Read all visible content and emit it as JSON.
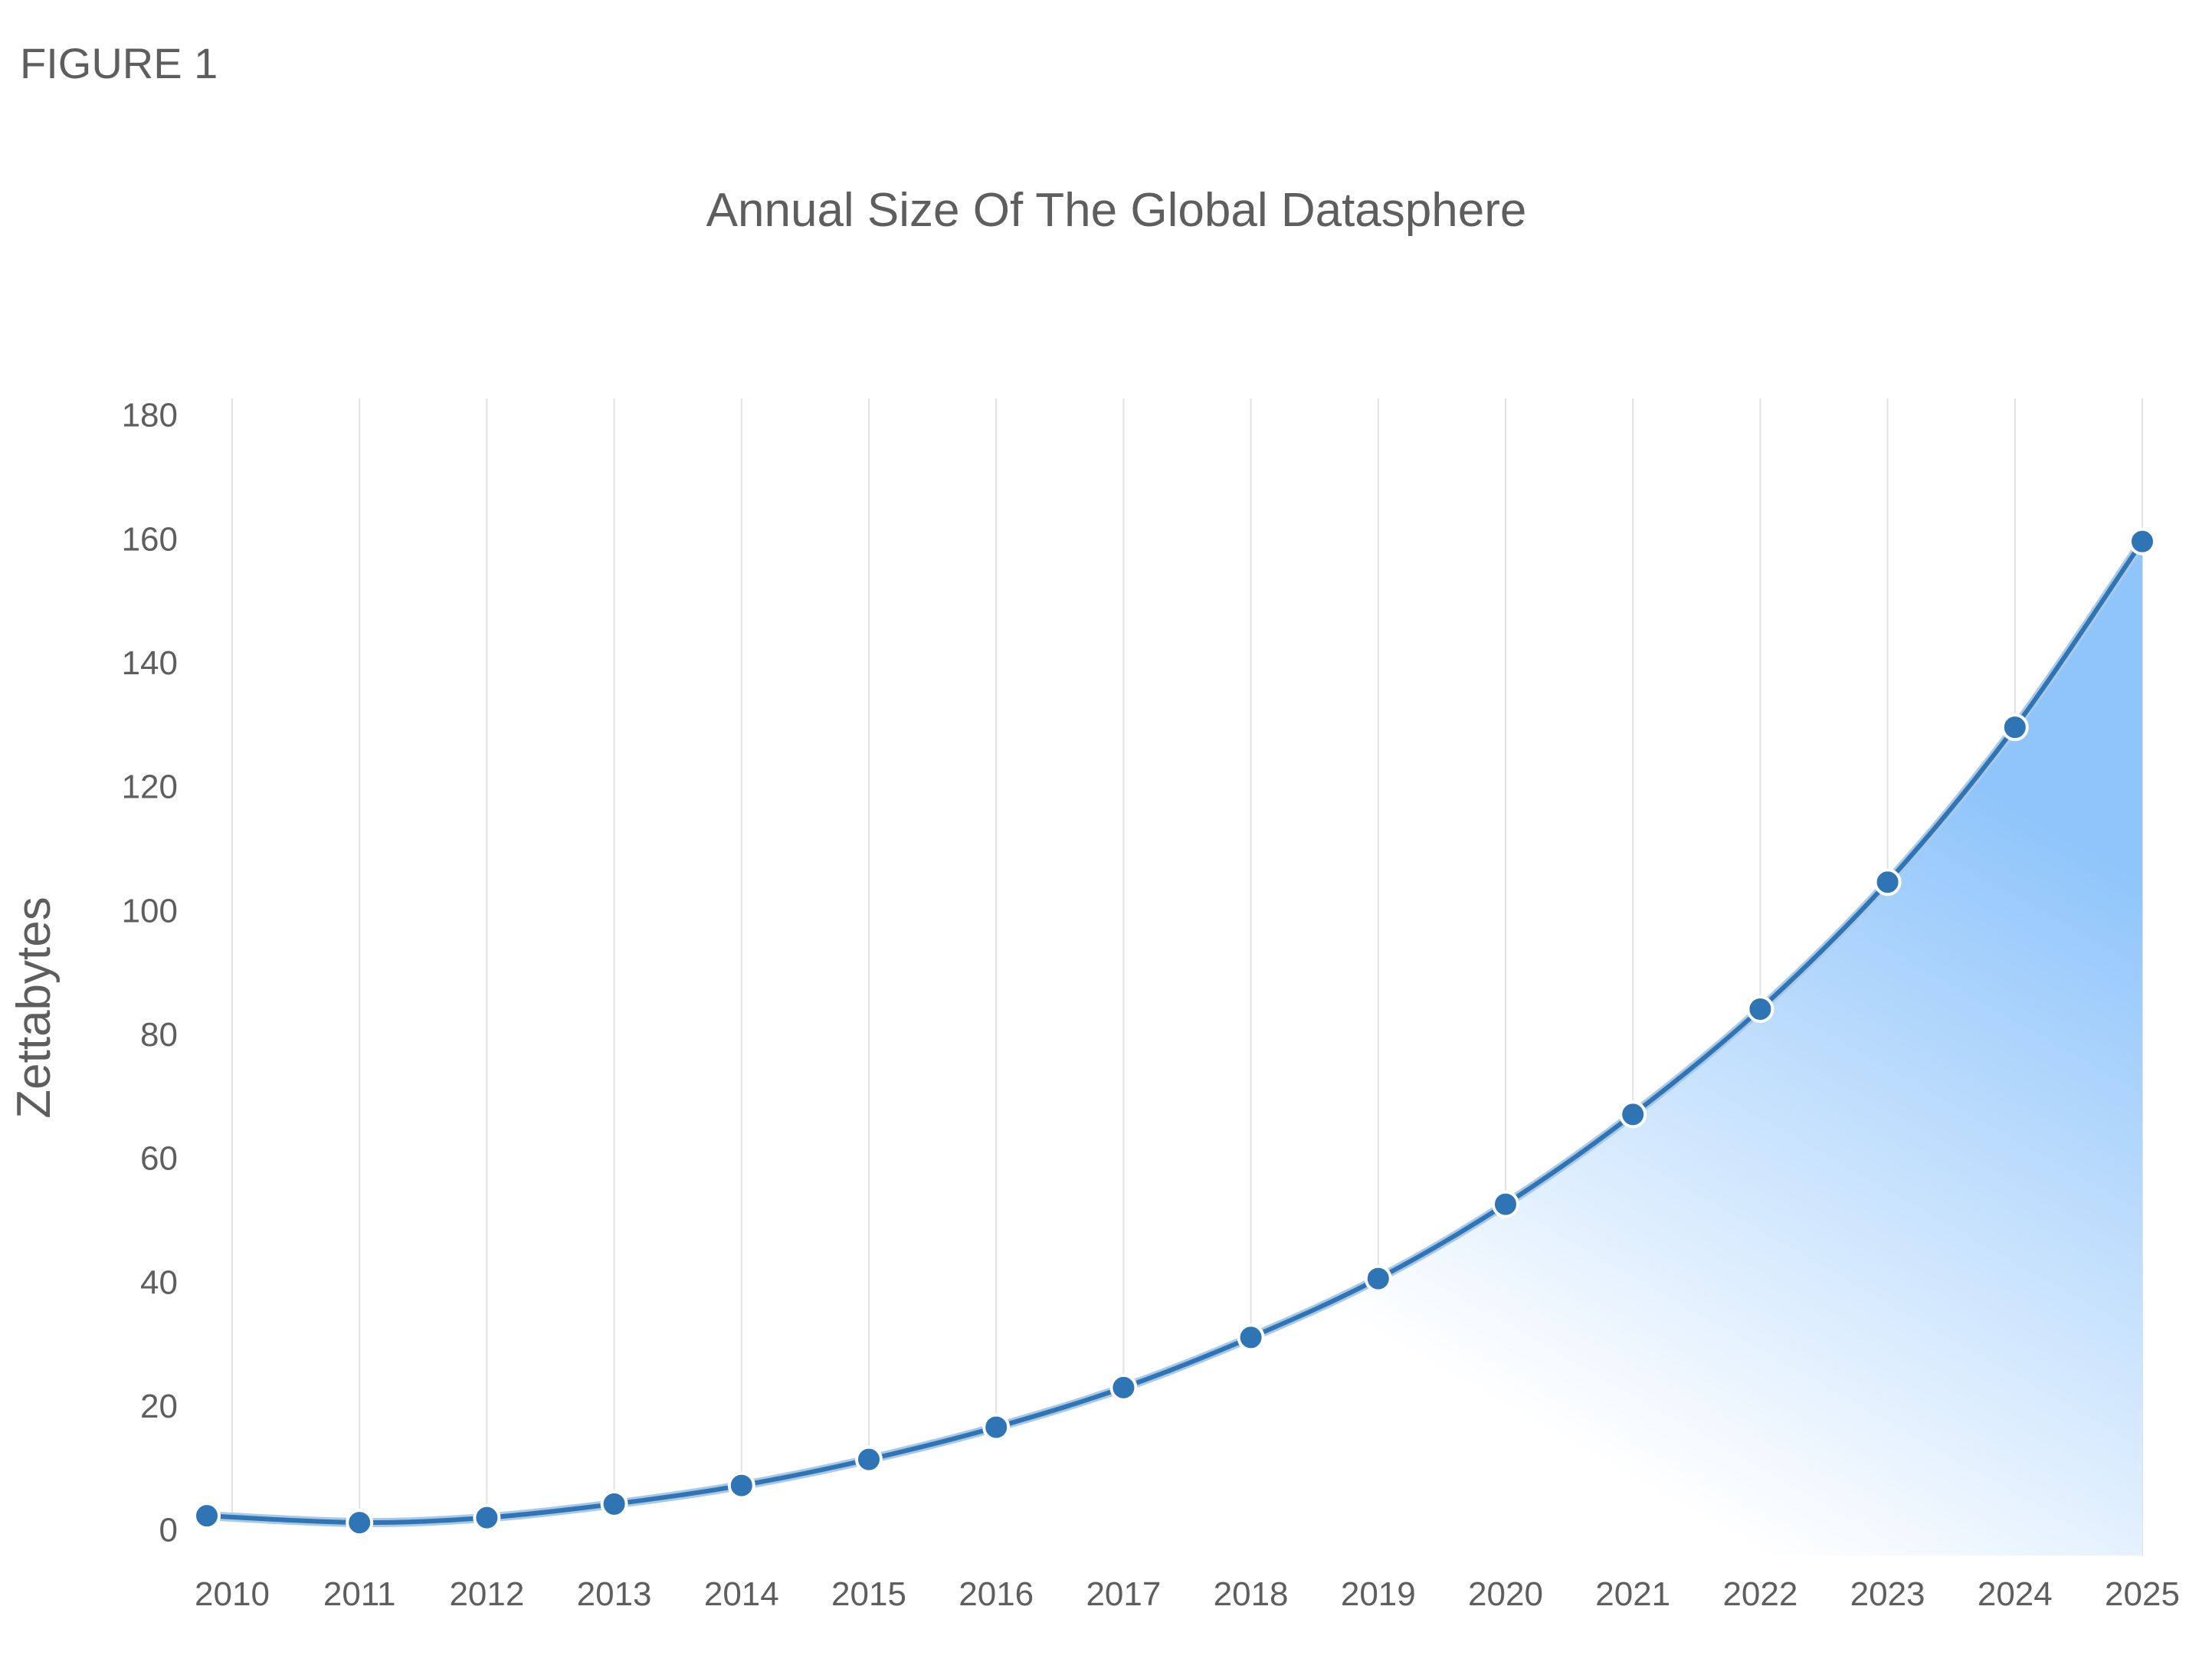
{
  "figure_label": "FIGURE 1",
  "chart_data": {
    "type": "area",
    "title": "Annual Size Of The Global Datasphere",
    "xlabel": "",
    "ylabel": "Zettabytes",
    "x": [
      "2010",
      "2011",
      "2012",
      "2013",
      "2014",
      "2015",
      "2016",
      "2017",
      "2018",
      "2019",
      "2020",
      "2021",
      "2022",
      "2023",
      "2024",
      "2025"
    ],
    "series": [
      {
        "values": [
          2.7,
          1.6,
          2.4,
          4.6,
          7.6,
          11.8,
          17.0,
          23.4,
          31.5,
          41.0,
          53.0,
          67.5,
          84.5,
          105.0,
          130.0,
          160.0
        ]
      }
    ],
    "ylim": [
      0,
      180
    ],
    "yticks": [
      0,
      20,
      40,
      60,
      80,
      100,
      120,
      140,
      160,
      180
    ],
    "grid": "vertical",
    "colors": {
      "line": "#2f74b5",
      "fill_top": "#90c5fb",
      "fill_bottom": "#ffffff",
      "marker_edge": "#ffffff"
    }
  }
}
